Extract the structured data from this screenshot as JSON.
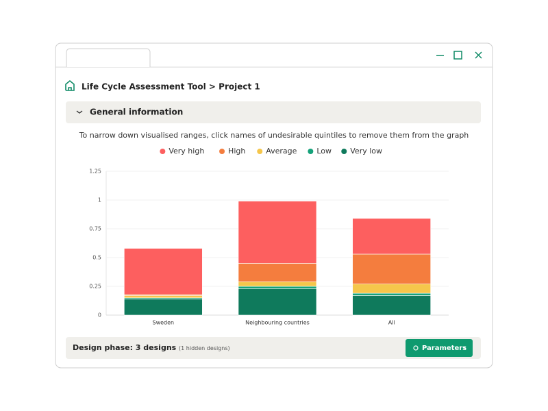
{
  "header": {
    "breadcrumb": "Life Cycle Assessment Tool > Project 1"
  },
  "section": {
    "title": "General information",
    "instruction": "To narrow down visualised ranges, click names of undesirable quintiles to remove them from the graph"
  },
  "footer": {
    "label": "Design phase: 3 designs",
    "note": "(1 hidden designs)",
    "button": "Parameters"
  },
  "chart_data": {
    "type": "bar",
    "stacked": true,
    "categories": [
      "Sweden",
      "Neighbouring countries",
      "All"
    ],
    "series": [
      {
        "name": "Very low",
        "color": "#0f7a5c",
        "values": [
          0.14,
          0.23,
          0.17
        ]
      },
      {
        "name": "Low",
        "color": "#15a27a",
        "values": [
          0.01,
          0.02,
          0.02
        ]
      },
      {
        "name": "Average",
        "color": "#f5c64b",
        "values": [
          0.02,
          0.04,
          0.08
        ]
      },
      {
        "name": "High",
        "color": "#f47d3e",
        "values": [
          0.01,
          0.16,
          0.26
        ]
      },
      {
        "name": "Very high",
        "color": "#fd5f5f",
        "values": [
          0.4,
          0.54,
          0.31
        ]
      }
    ],
    "legend_order": [
      "Very high",
      "High",
      "Average",
      "Low",
      "Very low"
    ],
    "ylim": [
      0,
      1.25
    ],
    "yticks": [
      0,
      0.25,
      0.5,
      0.75,
      1,
      1.25
    ],
    "grid": true
  }
}
